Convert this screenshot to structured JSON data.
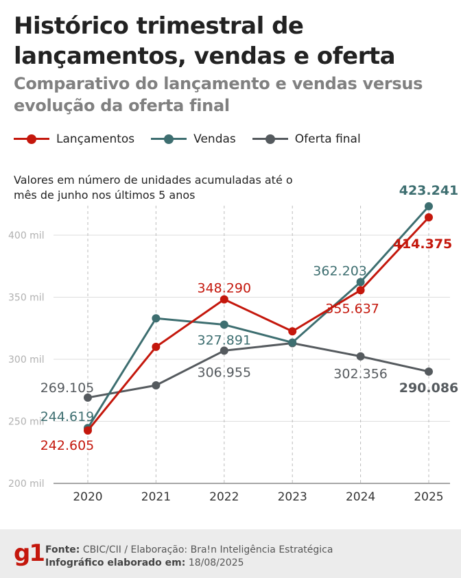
{
  "title": "Histórico trimestral de lançamentos, vendas e oferta",
  "subtitle": "Comparativo do lançamento e vendas versus evolução da oferta final",
  "note": "Valores em número de unidades acumuladas até o mês de junho nos últimos 5 anos",
  "legend": [
    {
      "label": "Lançamentos",
      "color": "#c4170c"
    },
    {
      "label": "Vendas",
      "color": "#3d6e70"
    },
    {
      "label": "Oferta final",
      "color": "#555a5e"
    }
  ],
  "chart_data": {
    "type": "line",
    "categories": [
      "2020",
      "2021",
      "2022",
      "2023",
      "2024",
      "2025"
    ],
    "ylim": [
      200000,
      430000
    ],
    "yticks": [
      200000,
      250000,
      300000,
      350000,
      400000
    ],
    "ytick_labels": [
      "200 mil",
      "250 mil",
      "300 mil",
      "350 mil",
      "400 mil"
    ],
    "series": [
      {
        "name": "Oferta final",
        "color": "#555a5e",
        "values": [
          269105,
          279000,
          306955,
          313000,
          302356,
          290086
        ],
        "labels": [
          "269.105",
          "",
          "306.955",
          "",
          "302.356",
          "290.086"
        ]
      },
      {
        "name": "Vendas",
        "color": "#3d6e70",
        "values": [
          244619,
          333000,
          327891,
          313500,
          362203,
          423241
        ],
        "labels": [
          "244.619",
          "",
          "327.891",
          "",
          "362.203",
          "423.241"
        ]
      },
      {
        "name": "Lançamentos",
        "color": "#c4170c",
        "values": [
          242605,
          310000,
          348290,
          322500,
          355637,
          414375
        ],
        "labels": [
          "242.605",
          "",
          "348.290",
          "",
          "355.637",
          "414.375"
        ]
      }
    ]
  },
  "footer": {
    "logo": "g1",
    "source_label": "Fonte:",
    "source_text": "CBIC/CII / Elaboração: Bra!n Inteligência Estratégica",
    "date_label": "Infográfico elaborado em:",
    "date_text": "18/08/2025"
  }
}
